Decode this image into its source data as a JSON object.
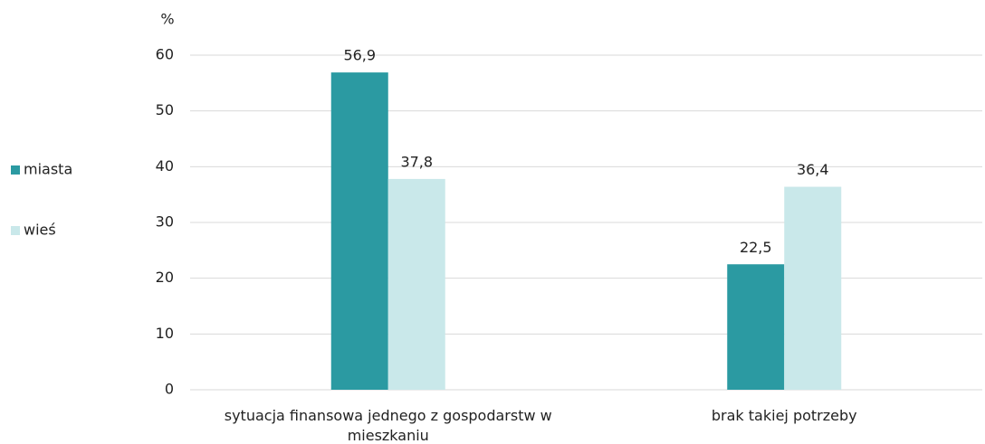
{
  "chart_data": {
    "type": "bar",
    "y_axis_label": "%",
    "categories": [
      "sytuacja finansowa jednego z gospodarstw w mieszkaniu",
      "brak takiej potrzeby"
    ],
    "series": [
      {
        "name": "miasta",
        "color": "#2b9aa2",
        "values": [
          56.9,
          22.5
        ],
        "value_labels": [
          "56,9",
          "22,5"
        ]
      },
      {
        "name": "wieś",
        "color": "#c9e8ea",
        "values": [
          37.8,
          36.4
        ],
        "value_labels": [
          "37,8",
          "36,4"
        ]
      }
    ],
    "ylim": [
      0,
      60
    ],
    "yticks": [
      0,
      10,
      20,
      30,
      40,
      50,
      60
    ],
    "grid": true,
    "legend": "left"
  }
}
